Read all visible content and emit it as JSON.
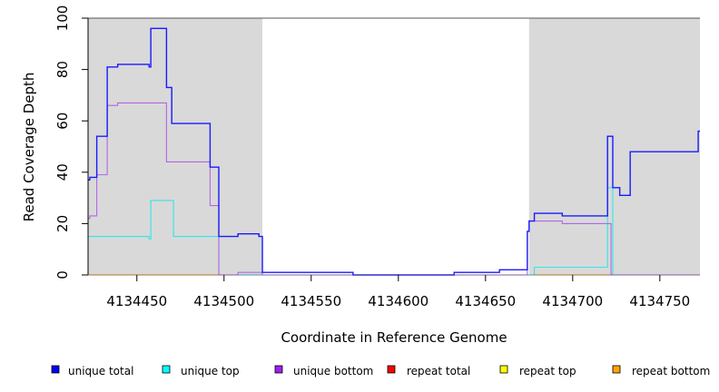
{
  "chart_data": {
    "type": "line",
    "xlabel": "Coordinate in Reference Genome",
    "ylabel": "Read Coverage Depth",
    "xlim": [
      4134422,
      4134773
    ],
    "ylim": [
      0,
      100
    ],
    "x_ticks": [
      4134450,
      4134500,
      4134550,
      4134600,
      4134650,
      4134700,
      4134750
    ],
    "y_ticks": [
      0,
      20,
      40,
      60,
      80,
      100
    ],
    "grid": false,
    "legend_position": "bottom",
    "shaded_regions": [
      {
        "x0": 4134422,
        "x1": 4134522
      },
      {
        "x0": 4134675,
        "x1": 4134773
      }
    ],
    "shade_color": "#d9d9d9",
    "series": [
      {
        "name": "unique total",
        "color": "#1a1aff",
        "points": [
          [
            4134422,
            37
          ],
          [
            4134423,
            38
          ],
          [
            4134427,
            54
          ],
          [
            4134433,
            81
          ],
          [
            4134439,
            82
          ],
          [
            4134457,
            81
          ],
          [
            4134458,
            96
          ],
          [
            4134467,
            73
          ],
          [
            4134470,
            59
          ],
          [
            4134492,
            42
          ],
          [
            4134497,
            15
          ],
          [
            4134508,
            16
          ],
          [
            4134520,
            15
          ],
          [
            4134522,
            1
          ],
          [
            4134574,
            0
          ],
          [
            4134632,
            1
          ],
          [
            4134658,
            2
          ],
          [
            4134674,
            17
          ],
          [
            4134675,
            21
          ],
          [
            4134678,
            24
          ],
          [
            4134694,
            23
          ],
          [
            4134720,
            54
          ],
          [
            4134723,
            34
          ],
          [
            4134727,
            31
          ],
          [
            4134733,
            48
          ],
          [
            4134772,
            56
          ],
          [
            4134773,
            56
          ]
        ]
      },
      {
        "name": "unique top",
        "color": "#33e5e5",
        "points": [
          [
            4134422,
            15
          ],
          [
            4134457,
            14
          ],
          [
            4134458,
            29
          ],
          [
            4134471,
            15
          ],
          [
            4134497,
            0
          ],
          [
            4134678,
            3
          ],
          [
            4134720,
            34
          ],
          [
            4134723,
            0
          ],
          [
            4134773,
            0
          ]
        ]
      },
      {
        "name": "unique bottom",
        "color": "#b266e5",
        "points": [
          [
            4134422,
            22
          ],
          [
            4134423,
            23
          ],
          [
            4134427,
            39
          ],
          [
            4134433,
            66
          ],
          [
            4134439,
            67
          ],
          [
            4134467,
            44
          ],
          [
            4134492,
            27
          ],
          [
            4134497,
            0
          ],
          [
            4134508,
            1
          ],
          [
            4134522,
            0
          ],
          [
            4134674,
            17
          ],
          [
            4134675,
            21
          ],
          [
            4134694,
            20
          ],
          [
            4134722,
            0
          ],
          [
            4134773,
            0
          ]
        ]
      },
      {
        "name": "repeat total",
        "color": "#e31a1c",
        "points": [
          [
            4134422,
            0
          ],
          [
            4134773,
            0
          ]
        ]
      },
      {
        "name": "repeat top",
        "color": "#ffff33",
        "points": [
          [
            4134422,
            0
          ],
          [
            4134773,
            0
          ]
        ]
      },
      {
        "name": "repeat bottom",
        "color": "#ff9900",
        "points": [
          [
            4134422,
            0
          ],
          [
            4134773,
            0
          ]
        ]
      }
    ],
    "legend": [
      {
        "label": "unique total",
        "color": "#0000ff"
      },
      {
        "label": "unique top",
        "color": "#00ffff"
      },
      {
        "label": "unique bottom",
        "color": "#a020f0"
      },
      {
        "label": "repeat total",
        "color": "#ff0000"
      },
      {
        "label": "repeat top",
        "color": "#ffff00"
      },
      {
        "label": "repeat bottom",
        "color": "#ffa500"
      }
    ]
  }
}
